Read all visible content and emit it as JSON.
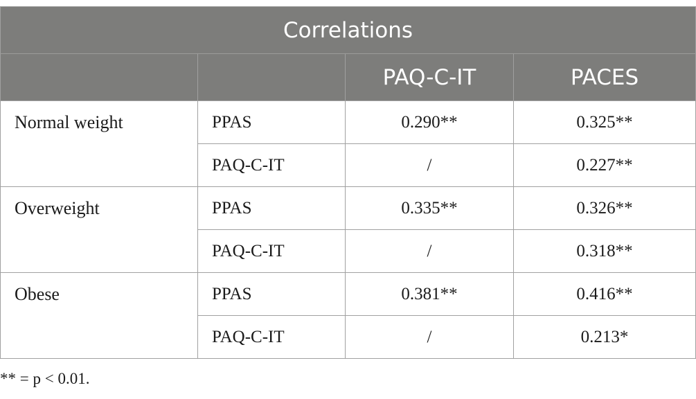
{
  "table": {
    "title": "Correlations",
    "columns": [
      "",
      "",
      "PAQ-C-IT",
      "PACES"
    ],
    "groups": [
      {
        "name": "Normal weight",
        "rows": [
          {
            "measure": "PPAS",
            "paq": "0.290**",
            "paces": "0.325**"
          },
          {
            "measure": "PAQ-C-IT",
            "paq": "/",
            "paces": "0.227**"
          }
        ]
      },
      {
        "name": "Overweight",
        "rows": [
          {
            "measure": "PPAS",
            "paq": "0.335**",
            "paces": "0.326**"
          },
          {
            "measure": "PAQ-C-IT",
            "paq": "/",
            "paces": "0.318**"
          }
        ]
      },
      {
        "name": "Obese",
        "rows": [
          {
            "measure": "PPAS",
            "paq": "0.381**",
            "paces": "0.416**"
          },
          {
            "measure": "PAQ-C-IT",
            "paq": "/",
            "paces": "0.213*"
          }
        ]
      }
    ]
  },
  "footnote": "** = p < 0.01.",
  "colors": {
    "header_bg": "#7d7d7b",
    "header_text": "#ffffff",
    "border": "#a0a0a0"
  }
}
